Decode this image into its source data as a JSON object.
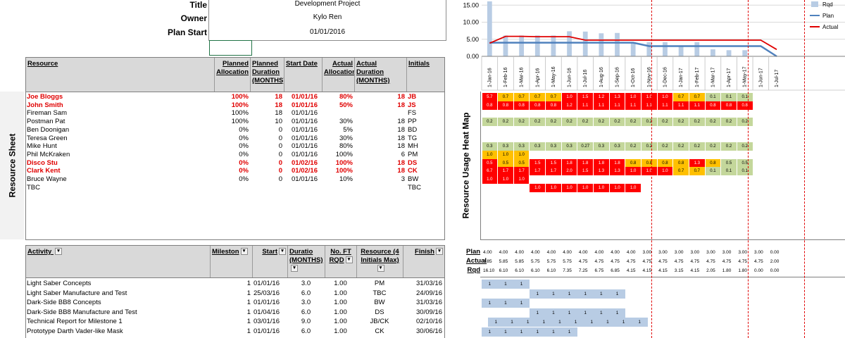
{
  "project": {
    "title_label": "Title",
    "title_value": "Development Project",
    "owner_label": "Owner",
    "owner_value": "Kylo Ren",
    "start_label": "Plan Start",
    "start_value": "01/01/2016"
  },
  "resource_sheet": {
    "side_label": "Resource Sheet",
    "headers": [
      "Resource",
      "Planned Allocation",
      "Planned Duration (MONTHS)",
      "Start Date",
      "Actual Allocation",
      "Actual Duration (MONTHS)",
      "Initials"
    ],
    "rows": [
      {
        "name": "Joe Bloggs",
        "pa": "100%",
        "pd": "18",
        "sd": "01/01/16",
        "aa": "80%",
        "ad": "18",
        "ini": "JB",
        "hl": true
      },
      {
        "name": "John Smith",
        "pa": "100%",
        "pd": "18",
        "sd": "01/01/16",
        "aa": "50%",
        "ad": "18",
        "ini": "JS",
        "hl": true
      },
      {
        "name": "Fireman Sam",
        "pa": "100%",
        "pd": "18",
        "sd": "01/01/16",
        "aa": "",
        "ad": "",
        "ini": "FS",
        "hl": false
      },
      {
        "name": "Postman Pat",
        "pa": "100%",
        "pd": "10",
        "sd": "01/01/16",
        "aa": "30%",
        "ad": "18",
        "ini": "PP",
        "hl": false
      },
      {
        "name": "Ben Doonigan",
        "pa": "0%",
        "pd": "0",
        "sd": "01/01/16",
        "aa": "5%",
        "ad": "18",
        "ini": "BD",
        "hl": false
      },
      {
        "name": "Teresa Green",
        "pa": "0%",
        "pd": "0",
        "sd": "01/01/16",
        "aa": "30%",
        "ad": "18",
        "ini": "TG",
        "hl": false
      },
      {
        "name": "Mike Hunt",
        "pa": "0%",
        "pd": "0",
        "sd": "01/01/16",
        "aa": "80%",
        "ad": "18",
        "ini": "MH",
        "hl": false
      },
      {
        "name": "Phil McKraken",
        "pa": "0%",
        "pd": "0",
        "sd": "01/01/16",
        "aa": "100%",
        "ad": "6",
        "ini": "PM",
        "hl": false
      },
      {
        "name": "Disco Stu",
        "pa": "0%",
        "pd": "0",
        "sd": "01/02/16",
        "aa": "100%",
        "ad": "18",
        "ini": "DS",
        "hl": true
      },
      {
        "name": "Clark Kent",
        "pa": "0%",
        "pd": "0",
        "sd": "01/02/16",
        "aa": "100%",
        "ad": "18",
        "ini": "CK",
        "hl": true
      },
      {
        "name": "Bruce Wayne",
        "pa": "0%",
        "pd": "0",
        "sd": "01/01/16",
        "aa": "10%",
        "ad": "3",
        "ini": "BW",
        "hl": false
      },
      {
        "name": "TBC",
        "pa": "",
        "pd": "",
        "sd": "",
        "aa": "",
        "ad": "",
        "ini": "TBC",
        "hl": false
      }
    ]
  },
  "activities": {
    "headers": [
      "Activity",
      "Mileston",
      "Start",
      "Duratio (MONTHS)",
      "No. FT RQD",
      "Resource (4 Initials Max)",
      "Finish"
    ],
    "rows": [
      {
        "name": "Light Saber Concepts",
        "ms": "1",
        "start": "01/01/16",
        "dur": "3.0",
        "ft": "1.00",
        "res": "PM",
        "fin": "31/03/16"
      },
      {
        "name": "Light Saber Manufacture and Test",
        "ms": "1",
        "start": "25/03/16",
        "dur": "6.0",
        "ft": "1.00",
        "res": "TBC",
        "fin": "24/09/16"
      },
      {
        "name": "Dark-Side BB8 Concepts",
        "ms": "1",
        "start": "01/01/16",
        "dur": "3.0",
        "ft": "1.00",
        "res": "BW",
        "fin": "31/03/16"
      },
      {
        "name": "Dark-Side BB8 Manufacture and Test",
        "ms": "1",
        "start": "01/04/16",
        "dur": "6.0",
        "ft": "1.00",
        "res": "DS",
        "fin": "30/09/16"
      },
      {
        "name": "Technical Report for Milestone 1",
        "ms": "1",
        "start": "03/01/16",
        "dur": "9.0",
        "ft": "1.00",
        "res": "JB/CK",
        "fin": "02/10/16"
      },
      {
        "name": "Prototype Darth Vader-like Mask",
        "ms": "1",
        "start": "01/01/16",
        "dur": "6.0",
        "ft": "1.00",
        "res": "CK",
        "fin": "30/06/16"
      }
    ]
  },
  "heatmap": {
    "side_label": "Resource Usage Heat Map",
    "months": [
      "1-Jan-16",
      "1-Feb-16",
      "1-Mar-16",
      "1-Apr-16",
      "1-May-16",
      "1-Jun-16",
      "1-Jul-16",
      "1-Aug-16",
      "1-Sep-16",
      "1-Oct-16",
      "1-Nov-16",
      "1-Dec-16",
      "1-Jan-17",
      "1-Feb-17",
      "1-Mar-17",
      "1-Apr-17",
      "1-May-17",
      "1-Jun-17",
      "1-Jul-17"
    ],
    "rows": [
      {
        "row": 0,
        "start": 0,
        "cells": [
          [
            "5.7",
            "r"
          ],
          [
            "0.7",
            "o"
          ],
          [
            "0.7",
            "o"
          ],
          [
            "0.7",
            "o"
          ],
          [
            "0.7",
            "o"
          ],
          [
            "1.0",
            "r"
          ],
          [
            "1.5",
            "r"
          ],
          [
            "1.2",
            "r"
          ],
          [
            "1.3",
            "r"
          ],
          [
            "1.0",
            "r"
          ],
          [
            "1.0",
            "r"
          ],
          [
            "1.0",
            "r"
          ],
          [
            "0.7",
            "o"
          ],
          [
            "0.7",
            "o"
          ],
          [
            "0.1",
            "g"
          ],
          [
            "0.1",
            "g"
          ],
          [
            "0.1",
            "g"
          ]
        ]
      },
      {
        "row": 1,
        "start": 0,
        "cells": [
          [
            "0.8",
            "r"
          ],
          [
            "0.8",
            "r"
          ],
          [
            "0.8",
            "r"
          ],
          [
            "0.8",
            "r"
          ],
          [
            "0.8",
            "r"
          ],
          [
            "1.2",
            "r"
          ],
          [
            "1.1",
            "r"
          ],
          [
            "1.1",
            "r"
          ],
          [
            "1.1",
            "r"
          ],
          [
            "1.1",
            "r"
          ],
          [
            "1.1",
            "r"
          ],
          [
            "1.1",
            "r"
          ],
          [
            "1.1",
            "r"
          ],
          [
            "1.1",
            "r"
          ],
          [
            "0.8",
            "r"
          ],
          [
            "0.8",
            "r"
          ],
          [
            "0.8",
            "r"
          ]
        ]
      },
      {
        "row": 3,
        "start": 0,
        "cells": [
          [
            "0.2",
            "g"
          ],
          [
            "0.2",
            "g"
          ],
          [
            "0.2",
            "g"
          ],
          [
            "0.2",
            "g"
          ],
          [
            "0.2",
            "g"
          ],
          [
            "0.2",
            "g"
          ],
          [
            "0.2",
            "g"
          ],
          [
            "0.2",
            "g"
          ],
          [
            "0.2",
            "g"
          ],
          [
            "0.2",
            "g"
          ],
          [
            "0.2",
            "g"
          ],
          [
            "0.2",
            "g"
          ],
          [
            "0.2",
            "g"
          ],
          [
            "0.2",
            "g"
          ],
          [
            "0.2",
            "g"
          ],
          [
            "0.2",
            "g"
          ],
          [
            "0.2",
            "g"
          ]
        ]
      },
      {
        "row": 6,
        "start": 0,
        "cells": [
          [
            "0.3",
            "g"
          ],
          [
            "0.3",
            "g"
          ],
          [
            "0.3",
            "g"
          ],
          [
            "0.3",
            "g"
          ],
          [
            "0.3",
            "g"
          ],
          [
            "0.3",
            "g"
          ],
          [
            "0.27",
            "g"
          ],
          [
            "0.3",
            "g"
          ],
          [
            "0.3",
            "g"
          ],
          [
            "0.2",
            "g"
          ],
          [
            "0.2",
            "g"
          ],
          [
            "0.2",
            "g"
          ],
          [
            "0.2",
            "g"
          ],
          [
            "0.2",
            "g"
          ],
          [
            "0.2",
            "g"
          ],
          [
            "0.2",
            "g"
          ],
          [
            "0.2",
            "g"
          ]
        ]
      },
      {
        "row": 7,
        "start": 0,
        "cells": [
          [
            "1.0",
            "o"
          ],
          [
            "1.0",
            "o"
          ],
          [
            "1.0",
            "o"
          ]
        ]
      },
      {
        "row": 8,
        "start": 0,
        "cells": [
          [
            "0.5",
            "r"
          ],
          [
            "0.5",
            "o"
          ],
          [
            "0.5",
            "o"
          ],
          [
            "1.5",
            "r"
          ],
          [
            "1.5",
            "r"
          ],
          [
            "1.8",
            "r"
          ],
          [
            "1.8",
            "r"
          ],
          [
            "1.8",
            "r"
          ],
          [
            "1.8",
            "r"
          ],
          [
            "0.8",
            "o"
          ],
          [
            "0.8",
            "o"
          ],
          [
            "0.8",
            "o"
          ],
          [
            "0.8",
            "o"
          ],
          [
            "1.3",
            "r"
          ],
          [
            "0.8",
            "o"
          ],
          [
            "0.5",
            "g"
          ],
          [
            "0.5",
            "g"
          ]
        ]
      },
      {
        "row": 9,
        "start": 0,
        "cells": [
          [
            "6.7",
            "r"
          ],
          [
            "1.7",
            "r"
          ],
          [
            "1.7",
            "r"
          ],
          [
            "1.7",
            "r"
          ],
          [
            "1.7",
            "r"
          ],
          [
            "2.0",
            "r"
          ],
          [
            "1.5",
            "r"
          ],
          [
            "1.3",
            "r"
          ],
          [
            "1.3",
            "r"
          ],
          [
            "1.0",
            "r"
          ],
          [
            "1.0",
            "r"
          ],
          [
            "1.0",
            "r"
          ],
          [
            "0.7",
            "o"
          ],
          [
            "0.7",
            "o"
          ],
          [
            "0.1",
            "g"
          ],
          [
            "0.1",
            "g"
          ],
          [
            "0.1",
            "g"
          ]
        ]
      },
      {
        "row": 10,
        "start": 0,
        "cells": [
          [
            "1.0",
            "r"
          ],
          [
            "1.0",
            "r"
          ],
          [
            "1.0",
            "r"
          ]
        ]
      },
      {
        "row": 11,
        "start": 3,
        "cells": [
          [
            "1.0",
            "r"
          ],
          [
            "1.0",
            "r"
          ],
          [
            "1.0",
            "r"
          ],
          [
            "1.0",
            "r"
          ],
          [
            "1.0",
            "r"
          ],
          [
            "1.0",
            "r"
          ],
          [
            "1.0",
            "r"
          ]
        ]
      }
    ]
  },
  "totals": {
    "labels": [
      "Plan",
      "Actual",
      "Rqd"
    ],
    "plan": [
      "4.00",
      "4.00",
      "4.00",
      "4.00",
      "4.00",
      "4.00",
      "4.00",
      "4.00",
      "4.00",
      "4.00",
      "3.00",
      "3.00",
      "3.00",
      "3.00",
      "3.00",
      "3.00",
      "3.00",
      "3.00",
      "0.00"
    ],
    "actual": [
      "3.85",
      "5.85",
      "5.85",
      "5.75",
      "5.75",
      "5.75",
      "4.75",
      "4.75",
      "4.75",
      "4.75",
      "4.75",
      "4.75",
      "4.75",
      "4.75",
      "4.75",
      "4.75",
      "4.75",
      "4.75",
      "2.00"
    ],
    "rqd": [
      "16.10",
      "6.10",
      "6.10",
      "6.10",
      "6.10",
      "7.35",
      "7.25",
      "6.75",
      "6.85",
      "4.15",
      "4.15",
      "4.15",
      "3.15",
      "4.15",
      "2.05",
      "1.80",
      "1.80",
      "0.00",
      "0.00"
    ]
  },
  "gantt": [
    {
      "start": 0,
      "count": 3
    },
    {
      "start": 3,
      "count": 6
    },
    {
      "start": 0,
      "count": 3
    },
    {
      "start": 3,
      "count": 6
    },
    {
      "start": 0,
      "count": 10,
      "offset": 0.4
    },
    {
      "start": 0,
      "count": 6
    }
  ],
  "gantt_label": "1",
  "chart_data": {
    "type": "bar",
    "categories": [
      "1-Jan-16",
      "1-Feb-16",
      "1-Mar-16",
      "1-Apr-16",
      "1-May-16",
      "1-Jun-16",
      "1-Jul-16",
      "1-Aug-16",
      "1-Sep-16",
      "1-Oct-16",
      "1-Nov-16",
      "1-Dec-16",
      "1-Jan-17",
      "1-Feb-17",
      "1-Mar-17",
      "1-Apr-17",
      "1-May-17",
      "1-Jun-17",
      "1-Jul-17"
    ],
    "series": [
      {
        "name": "Rqd",
        "kind": "bar",
        "color": "#b8cce4",
        "values": [
          16.1,
          6.1,
          6.1,
          6.1,
          6.1,
          7.35,
          7.25,
          6.75,
          6.85,
          4.15,
          4.15,
          4.15,
          3.15,
          4.15,
          2.05,
          1.8,
          1.8,
          0,
          0
        ]
      },
      {
        "name": "Plan",
        "kind": "line",
        "color": "#4f81bd",
        "values": [
          4,
          4,
          4,
          4,
          4,
          4,
          4,
          4,
          4,
          4,
          3,
          3,
          3,
          3,
          3,
          3,
          3,
          3,
          0
        ]
      },
      {
        "name": "Actual",
        "kind": "line",
        "color": "#e00000",
        "values": [
          3.85,
          5.85,
          5.85,
          5.75,
          5.75,
          5.75,
          4.75,
          4.75,
          4.75,
          4.75,
          4.75,
          4.75,
          4.75,
          4.75,
          4.75,
          4.75,
          4.75,
          4.75,
          2
        ]
      }
    ],
    "yticks": [
      "15.00",
      "10.00",
      "5.00",
      "0.00"
    ],
    "ylim": [
      0,
      16.5
    ],
    "legend": "top-right",
    "grid": true
  }
}
